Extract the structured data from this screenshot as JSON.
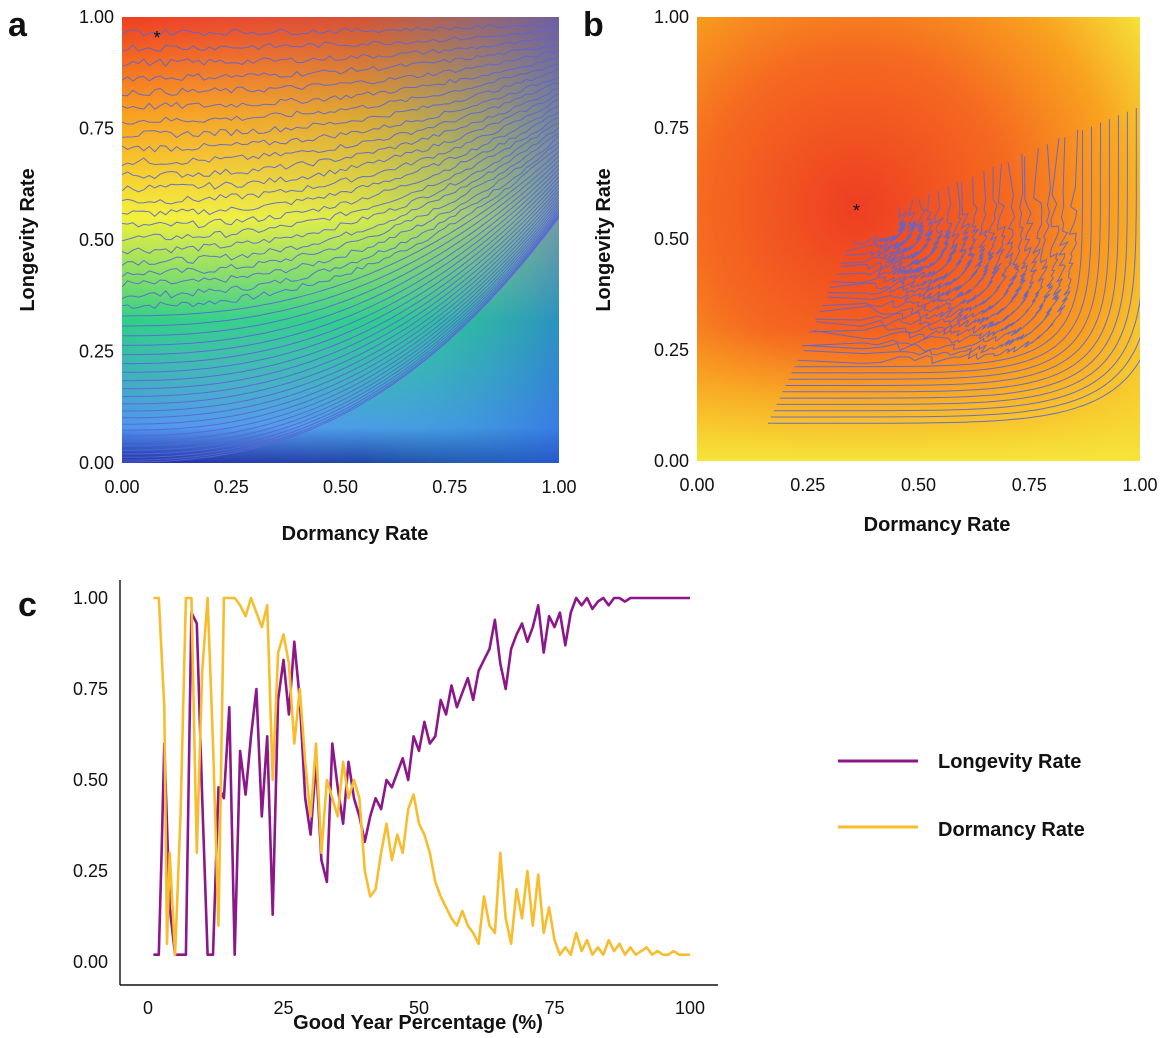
{
  "colors": {
    "longevity": "#8b178b",
    "dormancy": "#f8bd2e",
    "contour": "#5866d6"
  },
  "chart_data": [
    {
      "panel": "a",
      "type": "heatmap",
      "xlabel": "Dormancy Rate",
      "ylabel": "Longevity  Rate",
      "xlim": [
        0,
        1
      ],
      "ylim": [
        0,
        1
      ],
      "x_ticks": [
        "0.00",
        "0.25",
        "0.50",
        "0.75",
        "1.00"
      ],
      "y_ticks": [
        "0.00",
        "0.25",
        "0.50",
        "0.75",
        "1.00"
      ],
      "colorscale": [
        "#1c2fa6",
        "#4f95ee",
        "#2fcf86",
        "#f4f03a",
        "#f9a11f",
        "#ee3e22"
      ],
      "optimum_marker": {
        "symbol": "*",
        "x": 0.08,
        "y": 0.96
      },
      "contour_lines": true
    },
    {
      "panel": "b",
      "type": "heatmap",
      "xlabel": "Dormancy Rate",
      "ylabel": "Longevity  Rate",
      "xlim": [
        0,
        1
      ],
      "ylim": [
        0,
        1
      ],
      "x_ticks": [
        "0.00",
        "0.25",
        "0.50",
        "0.75",
        "1.00"
      ],
      "y_ticks": [
        "0.00",
        "0.25",
        "0.50",
        "0.75",
        "1.00"
      ],
      "colorscale": [
        "#f5e53a",
        "#f9b625",
        "#f8801e",
        "#ee3e22"
      ],
      "optimum_marker": {
        "symbol": "*",
        "x": 0.36,
        "y": 0.57
      },
      "contour_lines": true
    },
    {
      "panel": "c",
      "type": "line",
      "xlabel": "Good Year Percentage (%)",
      "ylabel": "",
      "xlim": [
        0,
        100
      ],
      "ylim": [
        0,
        1
      ],
      "x_ticks": [
        "0",
        "25",
        "50",
        "75",
        "100"
      ],
      "y_ticks": [
        "0.00",
        "0.25",
        "0.50",
        "0.75",
        "1.00"
      ],
      "legend_position": "right",
      "series": [
        {
          "name": "Longevity Rate",
          "color": "#8b178b",
          "points": [
            [
              1,
              0.02
            ],
            [
              2,
              0.02
            ],
            [
              2.5,
              0.3
            ],
            [
              3,
              0.6
            ],
            [
              4,
              0.15
            ],
            [
              5,
              0.02
            ],
            [
              6,
              0.02
            ],
            [
              7,
              0.02
            ],
            [
              8,
              0.96
            ],
            [
              9,
              0.93
            ],
            [
              10,
              0.45
            ],
            [
              11,
              0.02
            ],
            [
              12,
              0.02
            ],
            [
              13,
              0.48
            ],
            [
              14,
              0.45
            ],
            [
              15,
              0.7
            ],
            [
              16,
              0.02
            ],
            [
              17,
              0.58
            ],
            [
              18,
              0.46
            ],
            [
              19,
              0.62
            ],
            [
              20,
              0.75
            ],
            [
              21,
              0.4
            ],
            [
              22,
              0.62
            ],
            [
              23,
              0.13
            ],
            [
              24,
              0.72
            ],
            [
              25,
              0.83
            ],
            [
              26,
              0.68
            ],
            [
              27,
              0.88
            ],
            [
              28,
              0.72
            ],
            [
              29,
              0.45
            ],
            [
              30,
              0.35
            ],
            [
              31,
              0.55
            ],
            [
              32,
              0.28
            ],
            [
              33,
              0.22
            ],
            [
              34,
              0.6
            ],
            [
              35,
              0.48
            ],
            [
              36,
              0.38
            ],
            [
              37,
              0.55
            ],
            [
              38,
              0.45
            ],
            [
              39,
              0.4
            ],
            [
              40,
              0.33
            ],
            [
              41,
              0.4
            ],
            [
              42,
              0.45
            ],
            [
              43,
              0.42
            ],
            [
              44,
              0.5
            ],
            [
              45,
              0.48
            ],
            [
              46,
              0.52
            ],
            [
              47,
              0.56
            ],
            [
              48,
              0.5
            ],
            [
              49,
              0.62
            ],
            [
              50,
              0.58
            ],
            [
              51,
              0.66
            ],
            [
              52,
              0.6
            ],
            [
              53,
              0.62
            ],
            [
              54,
              0.72
            ],
            [
              55,
              0.68
            ],
            [
              56,
              0.76
            ],
            [
              57,
              0.7
            ],
            [
              58,
              0.74
            ],
            [
              59,
              0.78
            ],
            [
              60,
              0.72
            ],
            [
              61,
              0.8
            ],
            [
              62,
              0.83
            ],
            [
              63,
              0.86
            ],
            [
              64,
              0.94
            ],
            [
              65,
              0.82
            ],
            [
              66,
              0.75
            ],
            [
              67,
              0.86
            ],
            [
              68,
              0.9
            ],
            [
              69,
              0.93
            ],
            [
              70,
              0.88
            ],
            [
              71,
              0.92
            ],
            [
              72,
              0.98
            ],
            [
              73,
              0.85
            ],
            [
              74,
              0.95
            ],
            [
              75,
              0.92
            ],
            [
              76,
              0.96
            ],
            [
              77,
              0.87
            ],
            [
              78,
              0.96
            ],
            [
              79,
              1.0
            ],
            [
              80,
              0.98
            ],
            [
              81,
              1.0
            ],
            [
              82,
              0.97
            ],
            [
              83,
              0.99
            ],
            [
              84,
              1.0
            ],
            [
              85,
              0.98
            ],
            [
              86,
              1.0
            ],
            [
              87,
              1.0
            ],
            [
              88,
              0.99
            ],
            [
              89,
              1.0
            ],
            [
              90,
              1.0
            ],
            [
              95,
              1.0
            ],
            [
              100,
              1.0
            ]
          ]
        },
        {
          "name": "Dormancy Rate",
          "color": "#f8bd2e",
          "points": [
            [
              1,
              1.0
            ],
            [
              2,
              1.0
            ],
            [
              3,
              0.7
            ],
            [
              3.5,
              0.05
            ],
            [
              4,
              0.3
            ],
            [
              5,
              0.02
            ],
            [
              6,
              0.4
            ],
            [
              7,
              1.0
            ],
            [
              8,
              1.0
            ],
            [
              9,
              0.3
            ],
            [
              10,
              0.8
            ],
            [
              11,
              1.0
            ],
            [
              12,
              0.6
            ],
            [
              13,
              0.1
            ],
            [
              14,
              1.0
            ],
            [
              15,
              1.0
            ],
            [
              16,
              1.0
            ],
            [
              17,
              0.98
            ],
            [
              18,
              0.95
            ],
            [
              19,
              1.0
            ],
            [
              20,
              0.96
            ],
            [
              21,
              0.92
            ],
            [
              22,
              0.98
            ],
            [
              23,
              0.5
            ],
            [
              24,
              0.85
            ],
            [
              25,
              0.9
            ],
            [
              26,
              0.82
            ],
            [
              27,
              0.6
            ],
            [
              28,
              0.75
            ],
            [
              29,
              0.55
            ],
            [
              30,
              0.4
            ],
            [
              31,
              0.6
            ],
            [
              32,
              0.3
            ],
            [
              33,
              0.5
            ],
            [
              34,
              0.45
            ],
            [
              35,
              0.4
            ],
            [
              36,
              0.55
            ],
            [
              37,
              0.45
            ],
            [
              38,
              0.5
            ],
            [
              39,
              0.45
            ],
            [
              40,
              0.25
            ],
            [
              41,
              0.18
            ],
            [
              42,
              0.2
            ],
            [
              43,
              0.3
            ],
            [
              44,
              0.38
            ],
            [
              45,
              0.28
            ],
            [
              46,
              0.35
            ],
            [
              47,
              0.3
            ],
            [
              48,
              0.42
            ],
            [
              49,
              0.46
            ],
            [
              50,
              0.38
            ],
            [
              51,
              0.35
            ],
            [
              52,
              0.3
            ],
            [
              53,
              0.22
            ],
            [
              54,
              0.18
            ],
            [
              55,
              0.15
            ],
            [
              56,
              0.12
            ],
            [
              57,
              0.1
            ],
            [
              58,
              0.14
            ],
            [
              59,
              0.1
            ],
            [
              60,
              0.08
            ],
            [
              61,
              0.05
            ],
            [
              62,
              0.18
            ],
            [
              63,
              0.1
            ],
            [
              64,
              0.08
            ],
            [
              65,
              0.3
            ],
            [
              66,
              0.12
            ],
            [
              67,
              0.05
            ],
            [
              68,
              0.2
            ],
            [
              69,
              0.12
            ],
            [
              70,
              0.25
            ],
            [
              71,
              0.1
            ],
            [
              72,
              0.24
            ],
            [
              73,
              0.08
            ],
            [
              74,
              0.15
            ],
            [
              75,
              0.06
            ],
            [
              76,
              0.02
            ],
            [
              77,
              0.04
            ],
            [
              78,
              0.02
            ],
            [
              79,
              0.08
            ],
            [
              80,
              0.03
            ],
            [
              81,
              0.06
            ],
            [
              82,
              0.02
            ],
            [
              83,
              0.04
            ],
            [
              84,
              0.02
            ],
            [
              85,
              0.06
            ],
            [
              86,
              0.03
            ],
            [
              87,
              0.05
            ],
            [
              88,
              0.02
            ],
            [
              89,
              0.04
            ],
            [
              90,
              0.02
            ],
            [
              91,
              0.03
            ],
            [
              92,
              0.04
            ],
            [
              93,
              0.02
            ],
            [
              94,
              0.03
            ],
            [
              95,
              0.02
            ],
            [
              96,
              0.02
            ],
            [
              97,
              0.03
            ],
            [
              98,
              0.02
            ],
            [
              100,
              0.02
            ]
          ]
        }
      ]
    }
  ]
}
